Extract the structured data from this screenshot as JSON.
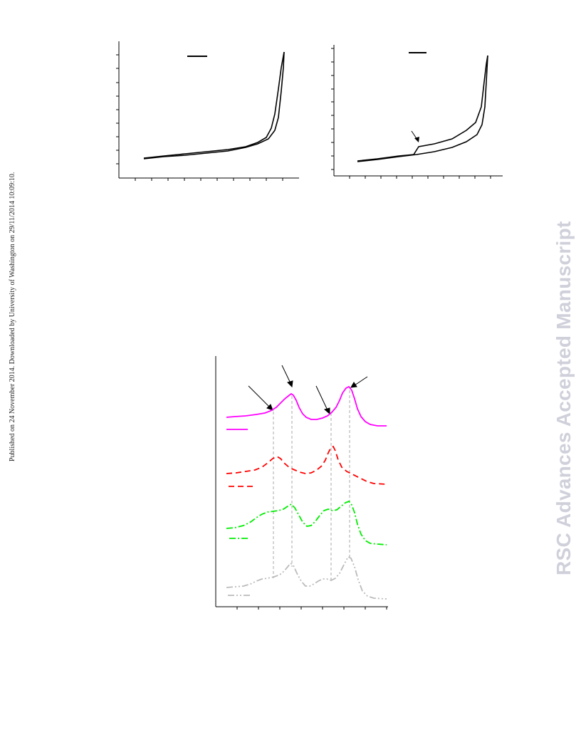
{
  "page": {
    "side_note": "Published on 24 November 2014. Downloaded by University of Washington on 29/11/2014 10:09:10.",
    "watermark": "RSC Advances Accepted Manuscript"
  },
  "colors": {
    "axis": "#000000",
    "series_solid_magenta": "#ff00ff",
    "series_dashed_red": "#ff0000",
    "series_dashdot_green": "#00ee00",
    "series_dashdotdot_gray": "#bbbbbb",
    "reference_lines": "#aaaaaa"
  }
}
